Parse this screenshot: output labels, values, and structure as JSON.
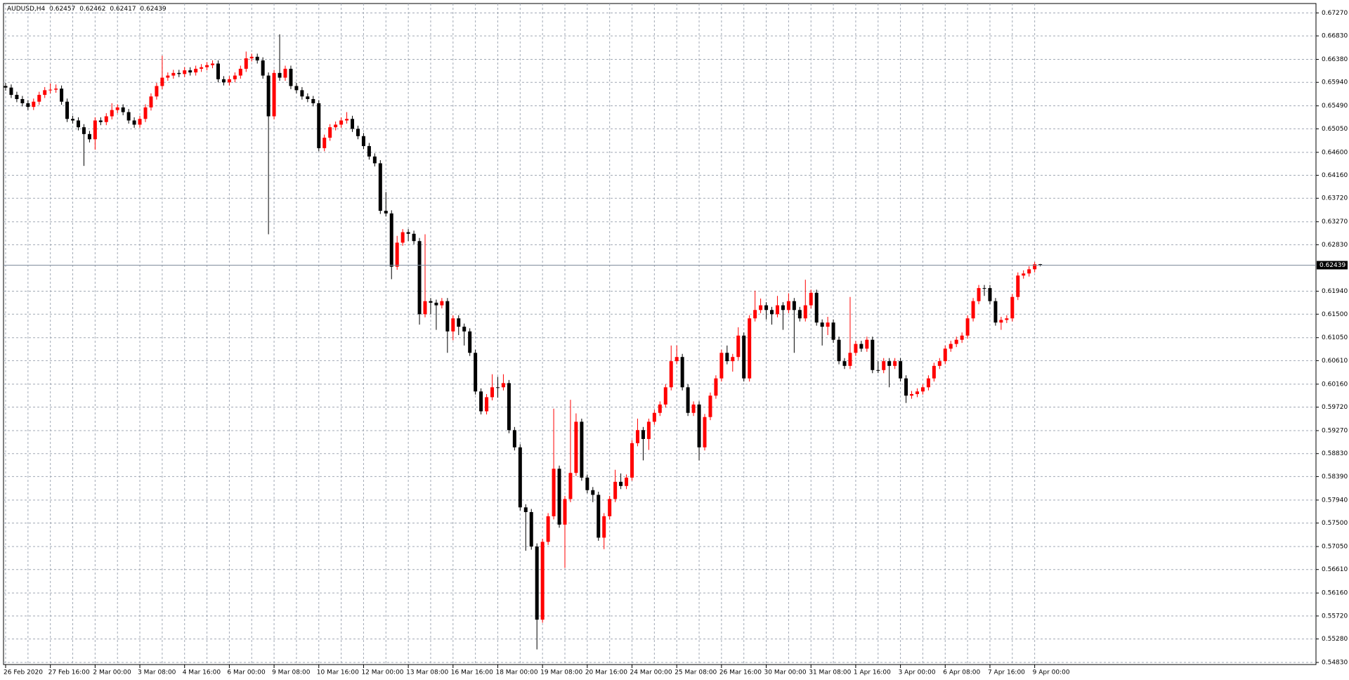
{
  "chart_data": {
    "type": "candlestick",
    "symbol": "AUDUSD,H4",
    "up_color": "#ff0000",
    "down_color": "#000000",
    "grid": true,
    "ylim": [
      0.5479,
      0.6745
    ],
    "yticks": [
      {
        "value": 0.6727,
        "label": "0.67270"
      },
      {
        "value": 0.6683,
        "label": "0.66830"
      },
      {
        "value": 0.6638,
        "label": "0.66380"
      },
      {
        "value": 0.6594,
        "label": "0.65940"
      },
      {
        "value": 0.6549,
        "label": "0.65490"
      },
      {
        "value": 0.6505,
        "label": "0.65050"
      },
      {
        "value": 0.646,
        "label": "0.64600"
      },
      {
        "value": 0.6416,
        "label": "0.64160"
      },
      {
        "value": 0.6372,
        "label": "0.63720"
      },
      {
        "value": 0.6327,
        "label": "0.63270"
      },
      {
        "value": 0.6283,
        "label": "0.62830"
      },
      {
        "value": 0.6194,
        "label": "0.61940"
      },
      {
        "value": 0.615,
        "label": "0.61500"
      },
      {
        "value": 0.6105,
        "label": "0.61050"
      },
      {
        "value": 0.6061,
        "label": "0.60610"
      },
      {
        "value": 0.6016,
        "label": "0.60160"
      },
      {
        "value": 0.5972,
        "label": "0.59720"
      },
      {
        "value": 0.5927,
        "label": "0.59270"
      },
      {
        "value": 0.5883,
        "label": "0.58830"
      },
      {
        "value": 0.5839,
        "label": "0.58390"
      },
      {
        "value": 0.5794,
        "label": "0.57940"
      },
      {
        "value": 0.575,
        "label": "0.57500"
      },
      {
        "value": 0.5705,
        "label": "0.57050"
      },
      {
        "value": 0.5661,
        "label": "0.56610"
      },
      {
        "value": 0.5616,
        "label": "0.56160"
      },
      {
        "value": 0.5572,
        "label": "0.55720"
      },
      {
        "value": 0.5528,
        "label": "0.55280"
      },
      {
        "value": 0.5483,
        "label": "0.54830"
      }
    ],
    "categories": [
      "26 Feb 2020",
      null,
      null,
      null,
      null,
      null,
      null,
      null,
      "27 Feb 16:00",
      null,
      null,
      null,
      null,
      null,
      null,
      null,
      "2 Mar 00:00",
      null,
      null,
      null,
      null,
      null,
      null,
      null,
      "3 Mar 08:00",
      null,
      null,
      null,
      null,
      null,
      null,
      null,
      "4 Mar 16:00",
      null,
      null,
      null,
      null,
      null,
      null,
      null,
      "6 Mar 00:00",
      null,
      null,
      null,
      null,
      null,
      null,
      null,
      "9 Mar 08:00",
      null,
      null,
      null,
      null,
      null,
      null,
      null,
      "10 Mar 16:00",
      null,
      null,
      null,
      null,
      null,
      null,
      null,
      "12 Mar 00:00",
      null,
      null,
      null,
      null,
      null,
      null,
      null,
      "13 Mar 08:00",
      null,
      null,
      null,
      null,
      null,
      null,
      null,
      "16 Mar 16:00",
      null,
      null,
      null,
      null,
      null,
      null,
      null,
      "18 Mar 00:00",
      null,
      null,
      null,
      null,
      null,
      null,
      null,
      "19 Mar 08:00",
      null,
      null,
      null,
      null,
      null,
      null,
      null,
      "20 Mar 16:00",
      null,
      null,
      null,
      null,
      null,
      null,
      null,
      "24 Mar 00:00",
      null,
      null,
      null,
      null,
      null,
      null,
      null,
      "25 Mar 08:00",
      null,
      null,
      null,
      null,
      null,
      null,
      null,
      "26 Mar 16:00",
      null,
      null,
      null,
      null,
      null,
      null,
      null,
      "30 Mar 00:00",
      null,
      null,
      null,
      null,
      null,
      null,
      null,
      "31 Mar 08:00",
      null,
      null,
      null,
      null,
      null,
      null,
      null,
      "1 Apr 16:00",
      null,
      null,
      null,
      null,
      null,
      null,
      null,
      "3 Apr 00:00",
      null,
      null,
      null,
      null,
      null,
      null,
      null,
      "6 Apr 08:00",
      null,
      null,
      null,
      null,
      null,
      null,
      null,
      "7 Apr 16:00",
      null,
      null,
      null,
      null,
      null,
      null,
      null,
      "9 Apr 00:00",
      null
    ],
    "open": [
      0.6587,
      0.6584,
      0.657,
      0.6562,
      0.6554,
      0.6547,
      0.6557,
      0.657,
      0.6579,
      0.658,
      0.6582,
      0.6557,
      0.6524,
      0.6521,
      0.6508,
      0.6495,
      0.6485,
      0.6521,
      0.6518,
      0.6529,
      0.6541,
      0.6546,
      0.6537,
      0.6521,
      0.6513,
      0.6524,
      0.6546,
      0.6567,
      0.6587,
      0.6603,
      0.6607,
      0.6612,
      0.661,
      0.6617,
      0.6613,
      0.662,
      0.6623,
      0.6627,
      0.663,
      0.66,
      0.6594,
      0.66,
      0.6607,
      0.662,
      0.664,
      0.6643,
      0.6636,
      0.6607,
      0.6529,
      0.6612,
      0.6603,
      0.662,
      0.6587,
      0.6579,
      0.6567,
      0.6562,
      0.6554,
      0.6468,
      0.6488,
      0.6508,
      0.6513,
      0.6521,
      0.6524,
      0.6505,
      0.6491,
      0.6472,
      0.6452,
      0.6439,
      0.6348,
      0.6343,
      0.6241,
      0.6287,
      0.6307,
      0.6304,
      0.629,
      0.615,
      0.6175,
      0.6172,
      0.6167,
      0.6175,
      0.6117,
      0.6142,
      0.6126,
      0.6117,
      0.6076,
      0.6002,
      0.5964,
      0.5991,
      0.601,
      0.601,
      0.6018,
      0.5928,
      0.5895,
      0.578,
      0.5771,
      0.5705,
      0.5565,
      0.5714,
      0.5763,
      0.5854,
      0.5747,
      0.5796,
      0.5846,
      0.5944,
      0.5837,
      0.5813,
      0.5804,
      0.5722,
      0.5763,
      0.5796,
      0.5829,
      0.5821,
      0.5837,
      0.5903,
      0.5928,
      0.5911,
      0.5944,
      0.5961,
      0.5977,
      0.601,
      0.606,
      0.6068,
      0.601,
      0.5961,
      0.5977,
      0.5895,
      0.5953,
      0.5994,
      0.6027,
      0.6076,
      0.606,
      0.6068,
      0.6109,
      0.6027,
      0.6142,
      0.6158,
      0.6167,
      0.6158,
      0.615,
      0.6167,
      0.6158,
      0.6175,
      0.6158,
      0.6142,
      0.6167,
      0.6191,
      0.6134,
      0.6126,
      0.6134,
      0.6101,
      0.606,
      0.6051,
      0.6076,
      0.6093,
      0.6084,
      0.6101,
      0.6043,
      0.6043,
      0.606,
      0.6051,
      0.606,
      0.6027,
      0.5994,
      0.5997,
      0.6002,
      0.601,
      0.6027,
      0.6051,
      0.606,
      0.6084,
      0.6093,
      0.6101,
      0.6109,
      0.6142,
      0.6175,
      0.62,
      0.62,
      0.6175,
      0.6134,
      0.6139,
      0.6142,
      0.6183,
      0.6224,
      0.6228,
      0.6236,
      0.62457
    ],
    "high": [
      0.6593,
      0.659,
      0.6576,
      0.6568,
      0.656,
      0.6563,
      0.6576,
      0.6585,
      0.6592,
      0.659,
      0.6588,
      0.6563,
      0.653,
      0.6527,
      0.6514,
      0.6501,
      0.6527,
      0.6527,
      0.6535,
      0.6554,
      0.6552,
      0.6552,
      0.6543,
      0.6527,
      0.653,
      0.6552,
      0.6573,
      0.6593,
      0.6645,
      0.6613,
      0.6618,
      0.6618,
      0.6623,
      0.6623,
      0.6626,
      0.6629,
      0.6633,
      0.6636,
      0.6636,
      0.6606,
      0.6606,
      0.6613,
      0.6626,
      0.6653,
      0.6649,
      0.6649,
      0.6642,
      0.6613,
      0.6618,
      0.6686,
      0.6626,
      0.6626,
      0.6593,
      0.6585,
      0.6573,
      0.6568,
      0.656,
      0.6494,
      0.6514,
      0.6519,
      0.6527,
      0.6537,
      0.653,
      0.6511,
      0.6497,
      0.6478,
      0.6458,
      0.6445,
      0.6384,
      0.6349,
      0.63,
      0.6313,
      0.6313,
      0.631,
      0.6296,
      0.6303,
      0.6181,
      0.6178,
      0.6181,
      0.6181,
      0.6148,
      0.6148,
      0.6132,
      0.6123,
      0.6082,
      0.6008,
      0.5997,
      0.6035,
      0.603,
      0.6035,
      0.6024,
      0.5934,
      0.5901,
      0.5786,
      0.5777,
      0.5711,
      0.572,
      0.5769,
      0.5969,
      0.586,
      0.5802,
      0.5986,
      0.596,
      0.595,
      0.5843,
      0.5819,
      0.581,
      0.5769,
      0.5802,
      0.5852,
      0.5845,
      0.5843,
      0.5909,
      0.595,
      0.5934,
      0.595,
      0.5967,
      0.5983,
      0.6016,
      0.609,
      0.609,
      0.6074,
      0.6016,
      0.5983,
      0.5983,
      0.5959,
      0.6,
      0.6033,
      0.6082,
      0.609,
      0.6074,
      0.6125,
      0.6115,
      0.6148,
      0.6195,
      0.618,
      0.6173,
      0.6164,
      0.6185,
      0.6173,
      0.619,
      0.6181,
      0.6164,
      0.6216,
      0.6197,
      0.6197,
      0.614,
      0.6145,
      0.614,
      0.6107,
      0.6066,
      0.6183,
      0.6099,
      0.6099,
      0.6107,
      0.6107,
      0.606,
      0.6066,
      0.6066,
      0.6066,
      0.6066,
      0.6033,
      0.6003,
      0.6008,
      0.6016,
      0.6033,
      0.6057,
      0.6066,
      0.609,
      0.6099,
      0.6107,
      0.6115,
      0.6148,
      0.6181,
      0.6206,
      0.6206,
      0.6206,
      0.6181,
      0.6145,
      0.6148,
      0.6189,
      0.623,
      0.6234,
      0.6242,
      0.625,
      0.62462
    ],
    "low": [
      0.6578,
      0.6564,
      0.6556,
      0.6548,
      0.6541,
      0.6541,
      0.6551,
      0.6564,
      0.6573,
      0.6574,
      0.6551,
      0.6518,
      0.6515,
      0.6502,
      0.6434,
      0.6479,
      0.6465,
      0.6512,
      0.6512,
      0.6523,
      0.6535,
      0.6531,
      0.6515,
      0.6507,
      0.6507,
      0.6518,
      0.654,
      0.6561,
      0.6581,
      0.6597,
      0.6601,
      0.6604,
      0.6604,
      0.6607,
      0.6607,
      0.6614,
      0.6617,
      0.6621,
      0.6594,
      0.6588,
      0.6588,
      0.6594,
      0.6601,
      0.6614,
      0.6634,
      0.663,
      0.6601,
      0.6303,
      0.6523,
      0.6597,
      0.6597,
      0.6581,
      0.6573,
      0.6561,
      0.6556,
      0.6548,
      0.6462,
      0.6462,
      0.6482,
      0.6502,
      0.6507,
      0.6515,
      0.6499,
      0.6485,
      0.6466,
      0.6446,
      0.6433,
      0.6342,
      0.6337,
      0.6217,
      0.6235,
      0.6281,
      0.629,
      0.6284,
      0.613,
      0.6144,
      0.615,
      0.612,
      0.6161,
      0.6076,
      0.61,
      0.611,
      0.609,
      0.607,
      0.5996,
      0.5958,
      0.5958,
      0.5985,
      0.599,
      0.6004,
      0.5922,
      0.5889,
      0.5774,
      0.5697,
      0.5699,
      0.5508,
      0.5559,
      0.5708,
      0.5757,
      0.5741,
      0.5664,
      0.579,
      0.584,
      0.5831,
      0.5807,
      0.579,
      0.5716,
      0.57,
      0.5757,
      0.579,
      0.5815,
      0.5815,
      0.5831,
      0.5897,
      0.587,
      0.589,
      0.5938,
      0.5955,
      0.5971,
      0.6004,
      0.6054,
      0.6004,
      0.5955,
      0.5955,
      0.587,
      0.5889,
      0.5947,
      0.5988,
      0.6021,
      0.6054,
      0.604,
      0.6062,
      0.6021,
      0.6021,
      0.6136,
      0.6152,
      0.614,
      0.613,
      0.6144,
      0.612,
      0.6152,
      0.6076,
      0.6136,
      0.6136,
      0.6161,
      0.6128,
      0.609,
      0.611,
      0.6095,
      0.6054,
      0.6045,
      0.6045,
      0.607,
      0.6078,
      0.6078,
      0.6037,
      0.6037,
      0.6037,
      0.601,
      0.6045,
      0.6021,
      0.598,
      0.5988,
      0.5991,
      0.5996,
      0.6004,
      0.6021,
      0.6045,
      0.6054,
      0.6078,
      0.6087,
      0.6095,
      0.6103,
      0.6136,
      0.6169,
      0.6185,
      0.6169,
      0.6128,
      0.612,
      0.6133,
      0.6136,
      0.6177,
      0.6218,
      0.6222,
      0.623,
      0.62417
    ],
    "close": [
      0.6584,
      0.657,
      0.6562,
      0.6554,
      0.6547,
      0.6557,
      0.657,
      0.6579,
      0.658,
      0.6582,
      0.6557,
      0.6524,
      0.6521,
      0.6508,
      0.6495,
      0.6485,
      0.6521,
      0.6518,
      0.6529,
      0.6541,
      0.6546,
      0.6537,
      0.6521,
      0.6513,
      0.6524,
      0.6546,
      0.6567,
      0.6587,
      0.6603,
      0.6607,
      0.6612,
      0.661,
      0.6617,
      0.6613,
      0.662,
      0.6623,
      0.6627,
      0.663,
      0.66,
      0.6594,
      0.66,
      0.6607,
      0.662,
      0.664,
      0.6643,
      0.6636,
      0.6607,
      0.6529,
      0.6612,
      0.6603,
      0.662,
      0.6587,
      0.6579,
      0.6567,
      0.6562,
      0.6554,
      0.6468,
      0.6488,
      0.6508,
      0.6513,
      0.6521,
      0.6524,
      0.6505,
      0.6491,
      0.6472,
      0.6452,
      0.6439,
      0.6348,
      0.6343,
      0.6241,
      0.6287,
      0.6307,
      0.6304,
      0.629,
      0.615,
      0.6175,
      0.6172,
      0.6167,
      0.6175,
      0.6117,
      0.6142,
      0.6126,
      0.6117,
      0.6076,
      0.6002,
      0.5964,
      0.5991,
      0.601,
      0.601,
      0.6018,
      0.5928,
      0.5895,
      0.578,
      0.5771,
      0.5705,
      0.5565,
      0.5714,
      0.5763,
      0.5854,
      0.5747,
      0.5796,
      0.5846,
      0.5944,
      0.5837,
      0.5813,
      0.5804,
      0.5722,
      0.5763,
      0.5796,
      0.5829,
      0.5821,
      0.5837,
      0.5903,
      0.5928,
      0.5911,
      0.5944,
      0.5961,
      0.5977,
      0.601,
      0.606,
      0.6068,
      0.601,
      0.5961,
      0.5977,
      0.5895,
      0.5953,
      0.5994,
      0.6027,
      0.6076,
      0.606,
      0.6068,
      0.6109,
      0.6027,
      0.6142,
      0.6158,
      0.6167,
      0.6158,
      0.615,
      0.6167,
      0.6158,
      0.6175,
      0.6158,
      0.6142,
      0.6167,
      0.6191,
      0.6134,
      0.6126,
      0.6134,
      0.6101,
      0.606,
      0.6051,
      0.6076,
      0.6093,
      0.6084,
      0.6101,
      0.6043,
      0.6043,
      0.606,
      0.6051,
      0.606,
      0.6027,
      0.5994,
      0.5997,
      0.6002,
      0.601,
      0.6027,
      0.6051,
      0.606,
      0.6084,
      0.6093,
      0.6101,
      0.6109,
      0.6142,
      0.6175,
      0.62,
      0.62,
      0.6175,
      0.6134,
      0.6139,
      0.6142,
      0.6183,
      0.6224,
      0.6228,
      0.6236,
      0.62457,
      0.62439
    ]
  }
}
